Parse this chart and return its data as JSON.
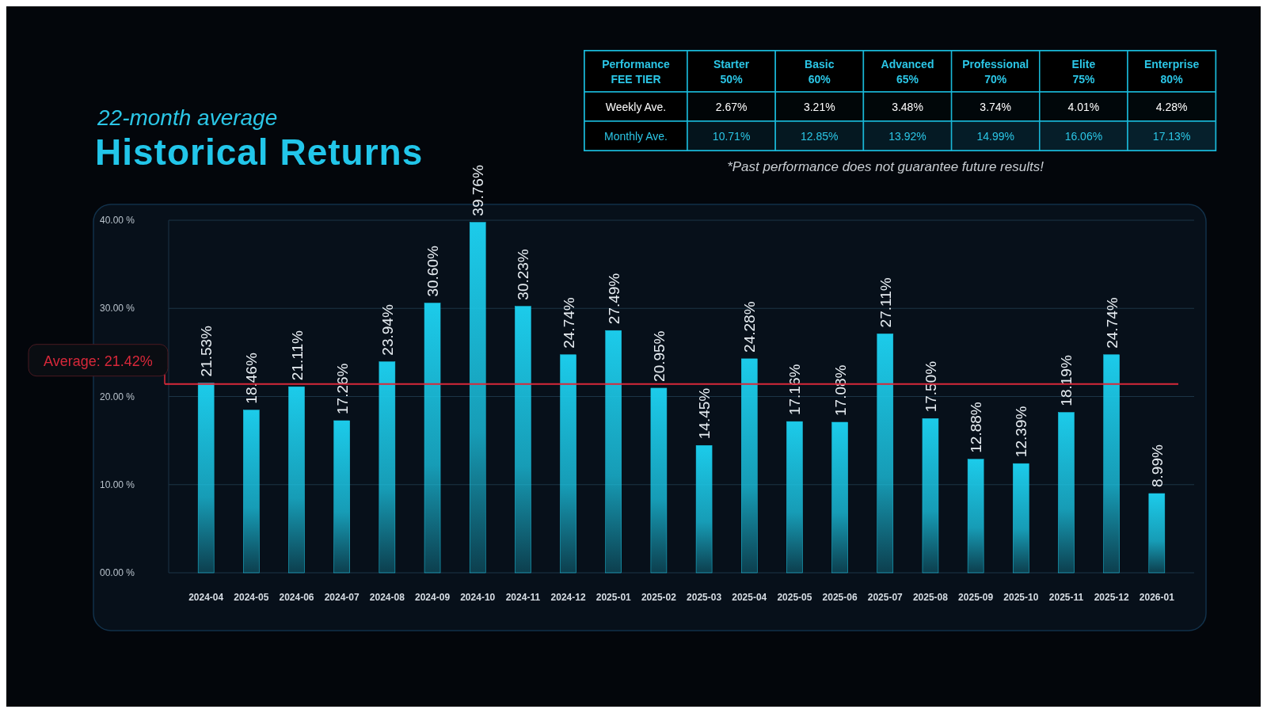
{
  "chart_data": [
    {
      "type": "bar",
      "title": "Historical Returns",
      "subtitle": "22-month average",
      "categories": [
        "2024-04",
        "2024-05",
        "2024-06",
        "2024-07",
        "2024-08",
        "2024-09",
        "2024-10",
        "2024-11",
        "2024-12",
        "2025-01",
        "2025-02",
        "2025-03",
        "2025-04",
        "2025-05",
        "2025-06",
        "2025-07",
        "2025-08",
        "2025-09",
        "2025-10",
        "2025-11",
        "2025-12",
        "2026-01"
      ],
      "values": [
        21.53,
        18.46,
        21.11,
        17.26,
        23.94,
        30.6,
        39.76,
        30.23,
        24.74,
        27.49,
        20.95,
        14.45,
        24.28,
        17.16,
        17.08,
        27.11,
        17.5,
        12.88,
        12.39,
        18.19,
        24.74,
        8.99
      ],
      "value_labels": [
        "21.53%",
        "18.46%",
        "21.11%",
        "17.26%",
        "23.94%",
        "30.60%",
        "39.76%",
        "30.23%",
        "24.74%",
        "27.49%",
        "20.95%",
        "14.45%",
        "24.28%",
        "17.16%",
        "17.08%",
        "27.11%",
        "17.50%",
        "12.88%",
        "12.39%",
        "18.19%",
        "24.74%",
        "8.99%"
      ],
      "color": "#1ccbea",
      "ylim": [
        0,
        40
      ],
      "yticks": [
        {
          "value": 0,
          "label": "00.00 %"
        },
        {
          "value": 10,
          "label": "10.00 %"
        },
        {
          "value": 20,
          "label": "20.00 %"
        },
        {
          "value": 30,
          "label": "30.00 %"
        },
        {
          "value": 40,
          "label": "40.00 %"
        }
      ],
      "grid": "y",
      "ref_lines": [
        {
          "axis": "y",
          "value": 21.42,
          "label": "Average: 21.42%",
          "color": "#d8283a"
        }
      ],
      "annotations": [
        "*Past performance does not guarantee future results!"
      ]
    },
    {
      "type": "heatmap",
      "title": "Performance\nFEE TIER",
      "categories": [
        "Starter\n50%",
        "Basic\n60%",
        "Advanced\n65%",
        "Professional\n70%",
        "Elite\n75%",
        "Enterprise\n80%"
      ],
      "y_categories": [
        "Weekly Ave.",
        "Monthly Ave."
      ],
      "cells": [
        [
          2.67,
          3.21,
          3.48,
          3.74,
          4.01,
          4.28
        ],
        [
          10.71,
          12.85,
          13.92,
          14.99,
          16.06,
          17.13
        ]
      ],
      "cell_labels": [
        [
          "2.67%",
          "3.21%",
          "3.48%",
          "3.74%",
          "4.01%",
          "4.28%"
        ],
        [
          "10.71%",
          "12.85%",
          "13.92%",
          "14.99%",
          "16.06%",
          "17.13%"
        ]
      ]
    }
  ]
}
